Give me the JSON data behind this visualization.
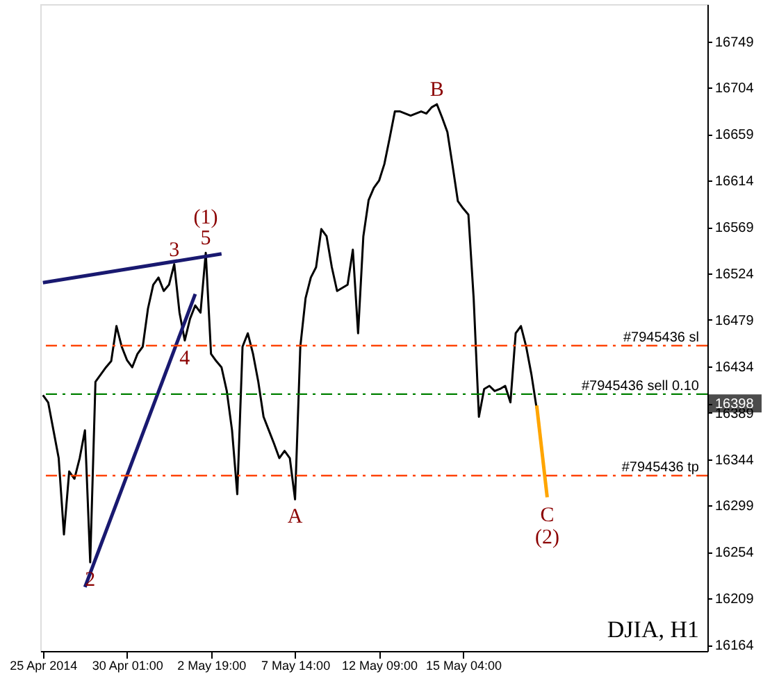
{
  "chart_data": {
    "type": "line",
    "categories": [
      "25 Apr 2014",
      null,
      null,
      null,
      null,
      null,
      null,
      null,
      null,
      null,
      null,
      null,
      null,
      null,
      null,
      null,
      "30 Apr 01:00",
      null,
      null,
      null,
      null,
      null,
      null,
      null,
      null,
      null,
      null,
      null,
      null,
      null,
      null,
      null,
      "2 May 19:00",
      null,
      null,
      null,
      null,
      null,
      null,
      null,
      null,
      null,
      null,
      null,
      null,
      null,
      null,
      null,
      "7 May 14:00",
      null,
      null,
      null,
      null,
      null,
      null,
      null,
      null,
      null,
      null,
      null,
      null,
      null,
      null,
      null,
      "12 May 09:00",
      null,
      null,
      null,
      null,
      null,
      null,
      null,
      null,
      null,
      null,
      null,
      null,
      null,
      null,
      null,
      "15 May 04:00",
      null,
      null,
      null,
      null,
      null,
      null,
      null,
      null,
      null,
      null,
      null,
      null,
      null,
      null,
      null,
      null,
      null,
      null,
      null,
      null,
      null,
      null,
      null,
      null,
      null,
      null,
      null,
      null,
      null,
      null,
      null,
      null,
      null,
      null,
      null,
      null,
      null,
      null,
      null,
      null,
      null,
      null,
      null,
      null,
      null,
      null
    ],
    "ylim": [
      16158,
      16785
    ],
    "yticks": [
      16164,
      16209,
      16254,
      16299,
      16344,
      16389,
      {
        "value": 16398,
        "label": "16398"
      },
      16434,
      16479,
      16524,
      16569,
      16614,
      16659,
      16704,
      16749
    ],
    "grid": false,
    "marker": "none",
    "series": [
      {
        "color": "#000000",
        "values": [
          16406,
          16399,
          16372,
          16345,
          16271,
          16332,
          16325,
          16345,
          16372,
          16244,
          16419,
          16426,
          16433,
          16439,
          16473,
          16453,
          16440,
          16433,
          16446,
          16453,
          16490,
          16513,
          16520,
          16507,
          16513,
          16533,
          16486,
          16459,
          16480,
          16493,
          16486,
          16544,
          16446,
          16439,
          16433,
          16410,
          16372,
          16310,
          16453,
          16466,
          16446,
          16419,
          16385,
          16372,
          16359,
          16345,
          16352,
          16345,
          16305,
          16453,
          16500,
          16520,
          16530,
          16567,
          16560,
          16530,
          16507,
          16510,
          16513,
          16547,
          16466,
          16560,
          16595,
          16607,
          16614,
          16630,
          16655,
          16681,
          16681,
          16679,
          16677,
          16679,
          16681,
          16679,
          16685,
          16688,
          16675,
          16661,
          16628,
          16594,
          16587,
          16581,
          16500,
          16385,
          16412,
          16415,
          16410,
          16412,
          16415,
          16399,
          16466,
          16473,
          16453,
          16426,
          16393,
          null,
          null,
          null,
          null,
          null,
          null,
          null,
          null,
          null,
          null,
          null,
          null,
          null,
          null,
          null,
          null,
          null,
          null,
          null,
          null,
          null,
          null,
          null,
          null,
          null,
          null,
          null,
          null,
          null,
          null,
          null,
          null
        ]
      },
      {
        "color": "#ffa500",
        "values": [
          null,
          null,
          null,
          null,
          null,
          null,
          null,
          null,
          null,
          null,
          null,
          null,
          null,
          null,
          null,
          null,
          null,
          null,
          null,
          null,
          null,
          null,
          null,
          null,
          null,
          null,
          null,
          null,
          null,
          null,
          null,
          null,
          null,
          null,
          null,
          null,
          null,
          null,
          null,
          null,
          null,
          null,
          null,
          null,
          null,
          null,
          null,
          null,
          null,
          null,
          null,
          null,
          null,
          null,
          null,
          null,
          null,
          null,
          null,
          null,
          null,
          null,
          null,
          null,
          null,
          null,
          null,
          null,
          null,
          null,
          null,
          null,
          null,
          null,
          null,
          null,
          null,
          null,
          null,
          null,
          null,
          null,
          null,
          null,
          null,
          null,
          null,
          null,
          null,
          null,
          null,
          null,
          null,
          null,
          16396,
          null,
          16307,
          null,
          null,
          null,
          null,
          null,
          null,
          null,
          null,
          null,
          null,
          null,
          null,
          null,
          null,
          null,
          null,
          null,
          null,
          null,
          null,
          null,
          null,
          null,
          null,
          null,
          null,
          null,
          null,
          null,
          null
        ]
      },
      {
        "color": "#191970",
        "values": [
          16515,
          null,
          null,
          null,
          null,
          null,
          null,
          null,
          null,
          null,
          null,
          null,
          null,
          null,
          null,
          null,
          null,
          null,
          null,
          null,
          null,
          null,
          null,
          null,
          null,
          null,
          null,
          null,
          null,
          null,
          null,
          null,
          null,
          null,
          16543,
          null,
          null,
          null,
          null,
          null,
          null,
          null,
          null,
          null,
          null,
          null,
          null,
          null,
          null,
          null,
          null,
          null,
          null,
          null,
          null,
          null,
          null,
          null,
          null,
          null,
          null,
          null,
          null,
          null,
          null,
          null,
          null,
          null,
          null,
          null,
          null,
          null,
          null,
          null,
          null,
          null,
          null,
          null,
          null,
          null,
          null,
          null,
          null,
          null,
          null,
          null,
          null,
          null,
          null,
          null,
          null,
          null,
          null,
          null,
          null,
          null,
          null,
          null,
          null,
          null,
          null,
          null,
          null,
          null,
          null,
          null,
          null,
          null,
          null,
          null,
          null,
          null,
          null,
          null,
          null,
          null,
          null,
          null,
          null,
          null,
          null,
          null,
          null,
          null,
          null,
          null,
          null
        ]
      },
      {
        "color": "#191970",
        "values": [
          null,
          null,
          null,
          null,
          null,
          null,
          null,
          null,
          16220,
          null,
          null,
          null,
          null,
          null,
          null,
          null,
          null,
          null,
          null,
          null,
          null,
          null,
          null,
          null,
          null,
          null,
          null,
          null,
          null,
          16504,
          null,
          null,
          null,
          null,
          null,
          null,
          null,
          null,
          null,
          null,
          null,
          null,
          null,
          null,
          null,
          null,
          null,
          null,
          null,
          null,
          null,
          null,
          null,
          null,
          null,
          null,
          null,
          null,
          null,
          null,
          null,
          null,
          null,
          null,
          null,
          null,
          null,
          null,
          null,
          null,
          null,
          null,
          null,
          null,
          null,
          null,
          null,
          null,
          null,
          null,
          null,
          null,
          null,
          null,
          null,
          null,
          null,
          null,
          null,
          null,
          null,
          null,
          null,
          null,
          null,
          null,
          null,
          null,
          null,
          null,
          null,
          null,
          null,
          null,
          null,
          null,
          null,
          null,
          null,
          null,
          null,
          null,
          null,
          null,
          null,
          null,
          null,
          null,
          null,
          null,
          null,
          null,
          null,
          null,
          null,
          null,
          null
        ]
      }
    ],
    "ref_lines": [
      {
        "axis": "y",
        "value": 16454,
        "label": "#7945436 sl",
        "color": "#ff4500",
        "line_style": "dashed"
      },
      {
        "axis": "y",
        "value": 16407,
        "label": "#7945436 sell 0.10",
        "color": "#008000",
        "line_style": "dashed"
      },
      {
        "axis": "y",
        "value": 16328,
        "label": "#7945436 tp",
        "color": "#ff4500",
        "line_style": "dashed"
      }
    ],
    "annotations": [
      {
        "text": "3",
        "y": 16533
      },
      {
        "text": "5",
        "y": 16544
      },
      {
        "text": "(1)",
        "y": 16544
      },
      {
        "text": "4",
        "y": 16459
      },
      {
        "text": "2",
        "y": 16244
      },
      {
        "text": "A",
        "y": 16305
      },
      {
        "text": "B",
        "y": 16688
      },
      {
        "text": "C",
        "y": 16307
      },
      {
        "text": "(2)",
        "y": 16307
      },
      "DJIA, H1"
    ]
  }
}
